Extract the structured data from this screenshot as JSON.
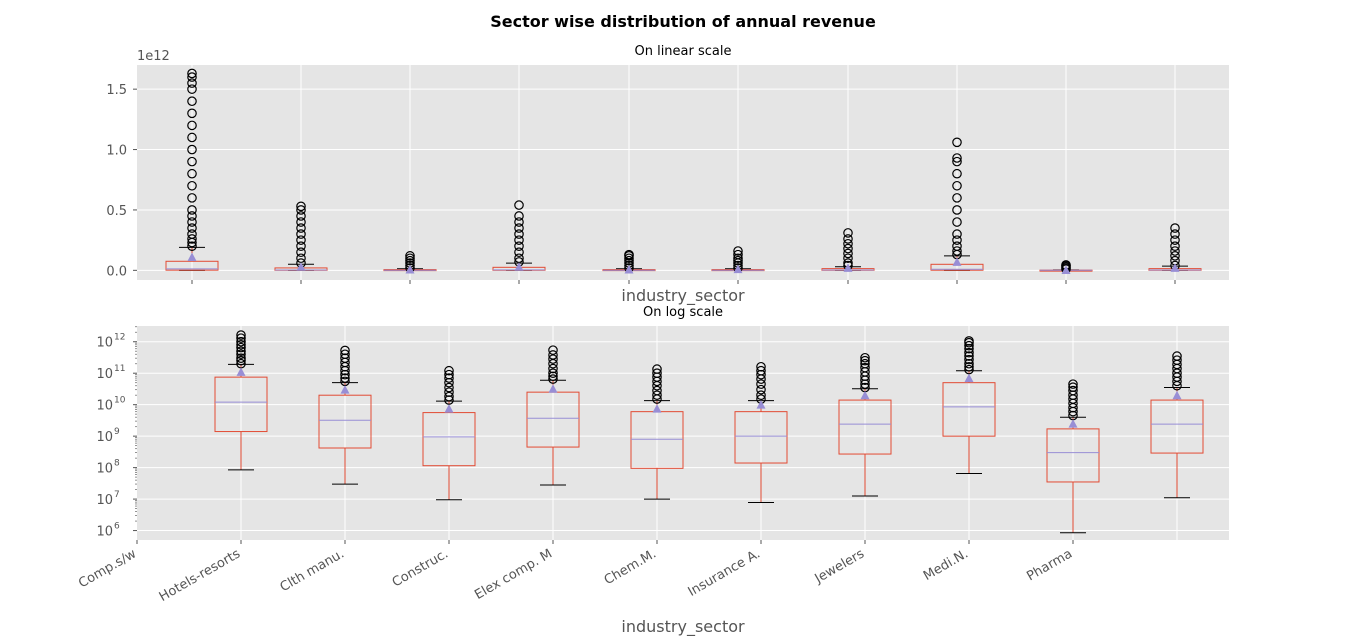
{
  "figure": {
    "suptitle": "Sector wise distribution of annual revenue"
  },
  "chart_data": [
    {
      "type": "box",
      "title": "On linear scale",
      "xlabel": "industry_sector",
      "ylabel": "",
      "yscale": "linear",
      "offset_text": "1e12",
      "ylim": [
        -0.08,
        1.7
      ],
      "yticks": [
        0.0,
        0.5,
        1.0,
        1.5
      ],
      "ytick_labels": [
        "0.0",
        "0.5",
        "1.0",
        "1.5"
      ],
      "units": "×1e12",
      "grid": true,
      "show_xtick_labels": false,
      "boxes": [
        {
          "q1": 0.0015,
          "median": 0.012,
          "q3": 0.075,
          "whislo": 0.0001,
          "whishi": 0.19,
          "mean": 0.11,
          "fliers": [
            0.2,
            0.23,
            0.26,
            0.3,
            0.35,
            0.4,
            0.45,
            0.5,
            0.6,
            0.7,
            0.8,
            0.9,
            1.0,
            1.1,
            1.2,
            1.3,
            1.4,
            1.5,
            1.55,
            1.6,
            1.63
          ]
        },
        {
          "q1": 0.0004,
          "median": 0.003,
          "q3": 0.02,
          "whislo": 3e-05,
          "whishi": 0.05,
          "mean": 0.03,
          "fliers": [
            0.06,
            0.1,
            0.15,
            0.2,
            0.25,
            0.3,
            0.35,
            0.4,
            0.45,
            0.5,
            0.53
          ]
        },
        {
          "q1": 0.0001,
          "median": 0.001,
          "q3": 0.006,
          "whislo": 1e-05,
          "whishi": 0.013,
          "mean": 0.007,
          "fliers": [
            0.02,
            0.04,
            0.06,
            0.08,
            0.1,
            0.12
          ]
        },
        {
          "q1": 0.0005,
          "median": 0.004,
          "q3": 0.025,
          "whislo": 3e-05,
          "whishi": 0.06,
          "mean": 0.03,
          "fliers": [
            0.07,
            0.1,
            0.15,
            0.2,
            0.25,
            0.3,
            0.35,
            0.4,
            0.45,
            0.54
          ]
        },
        {
          "q1": 0.0001,
          "median": 0.0008,
          "q3": 0.006,
          "whislo": 1e-05,
          "whishi": 0.013,
          "mean": 0.007,
          "fliers": [
            0.02,
            0.04,
            0.06,
            0.08,
            0.1,
            0.12,
            0.13
          ]
        },
        {
          "q1": 0.00015,
          "median": 0.001,
          "q3": 0.006,
          "whislo": 8e-06,
          "whishi": 0.013,
          "mean": 0.01,
          "fliers": [
            0.02,
            0.04,
            0.06,
            0.08,
            0.1,
            0.13,
            0.16
          ]
        },
        {
          "q1": 0.0003,
          "median": 0.0025,
          "q3": 0.014,
          "whislo": 1.3e-05,
          "whishi": 0.03,
          "mean": 0.02,
          "fliers": [
            0.04,
            0.06,
            0.1,
            0.14,
            0.18,
            0.22,
            0.26,
            0.31
          ]
        },
        {
          "q1": 0.001,
          "median": 0.009,
          "q3": 0.05,
          "whislo": 7e-05,
          "whishi": 0.12,
          "mean": 0.07,
          "fliers": [
            0.13,
            0.16,
            0.2,
            0.25,
            0.3,
            0.4,
            0.5,
            0.6,
            0.7,
            0.8,
            0.9,
            0.93,
            1.06
          ]
        },
        {
          "q1": 4e-05,
          "median": 0.0003,
          "q3": 0.0017,
          "whislo": 9e-07,
          "whishi": 0.004,
          "mean": 0.0025,
          "fliers": [
            0.01,
            0.02,
            0.03,
            0.04,
            0.045
          ]
        },
        {
          "q1": 0.0003,
          "median": 0.0025,
          "q3": 0.014,
          "whislo": 1.1e-05,
          "whishi": 0.035,
          "mean": 0.02,
          "fliers": [
            0.04,
            0.08,
            0.12,
            0.16,
            0.2,
            0.25,
            0.3,
            0.35
          ]
        }
      ]
    },
    {
      "type": "box",
      "title": "On log scale",
      "xlabel": "industry_sector",
      "ylabel": "",
      "yscale": "log",
      "ylim_exp": [
        5.7,
        12.5
      ],
      "ytick_exps": [
        6,
        7,
        8,
        9,
        10,
        11,
        12
      ],
      "grid": true,
      "categories": [
        "Comp.s/w",
        "Hotels-resorts",
        "Clth manu.",
        "Construc.",
        "Elex comp. M",
        "Chem.M.",
        "Insurance A.",
        "Jewelers",
        "Medi.N.",
        "Pharma"
      ],
      "boxes": [
        {
          "q1": 1400000000.0,
          "median": 12000000000.0,
          "q3": 75000000000.0,
          "whislo": 85000000.0,
          "whishi": 190000000000.0,
          "mean": 110000000000.0,
          "fliers": [
            200000000000.0,
            250000000000.0,
            300000000000.0,
            400000000000.0,
            500000000000.0,
            650000000000.0,
            800000000000.0,
            1000000000000.0,
            1300000000000.0,
            1630000000000.0
          ]
        },
        {
          "q1": 420000000.0,
          "median": 3200000000.0,
          "q3": 20000000000.0,
          "whislo": 30000000.0,
          "whishi": 50000000000.0,
          "mean": 30000000000.0,
          "fliers": [
            55000000000.0,
            70000000000.0,
            90000000000.0,
            120000000000.0,
            160000000000.0,
            220000000000.0,
            300000000000.0,
            400000000000.0,
            530000000000.0
          ]
        },
        {
          "q1": 115000000.0,
          "median": 950000000.0,
          "q3": 5600000000.0,
          "whislo": 9500000.0,
          "whishi": 13000000000.0,
          "mean": 7500000000.0,
          "fliers": [
            14000000000.0,
            18000000000.0,
            25000000000.0,
            35000000000.0,
            50000000000.0,
            70000000000.0,
            90000000000.0,
            120000000000.0
          ]
        },
        {
          "q1": 450000000.0,
          "median": 3700000000.0,
          "q3": 25000000000.0,
          "whislo": 28000000.0,
          "whishi": 60000000000.0,
          "mean": 32000000000.0,
          "fliers": [
            65000000000.0,
            80000000000.0,
            100000000000.0,
            140000000000.0,
            200000000000.0,
            280000000000.0,
            380000000000.0,
            540000000000.0
          ]
        },
        {
          "q1": 95000000.0,
          "median": 800000000.0,
          "q3": 6000000000.0,
          "whislo": 10000000.0,
          "whishi": 13500000000.0,
          "mean": 7500000000.0,
          "fliers": [
            15000000000.0,
            20000000000.0,
            28000000000.0,
            40000000000.0,
            55000000000.0,
            75000000000.0,
            100000000000.0,
            135000000000.0
          ]
        },
        {
          "q1": 140000000.0,
          "median": 1000000000.0,
          "q3": 6000000000.0,
          "whislo": 7800000.0,
          "whishi": 13500000000.0,
          "mean": 10000000000.0,
          "fliers": [
            15000000000.0,
            20000000000.0,
            30000000000.0,
            45000000000.0,
            65000000000.0,
            90000000000.0,
            120000000000.0,
            160000000000.0
          ]
        },
        {
          "q1": 270000000.0,
          "median": 2400000000.0,
          "q3": 14000000000.0,
          "whislo": 12500000.0,
          "whishi": 32000000000.0,
          "mean": 20000000000.0,
          "fliers": [
            35000000000.0,
            45000000000.0,
            60000000000.0,
            80000000000.0,
            110000000000.0,
            150000000000.0,
            200000000000.0,
            250000000000.0,
            310000000000.0
          ]
        },
        {
          "q1": 1000000000.0,
          "median": 8500000000.0,
          "q3": 50000000000.0,
          "whislo": 65000000.0,
          "whishi": 120000000000.0,
          "mean": 70000000000.0,
          "fliers": [
            130000000000.0,
            160000000000.0,
            200000000000.0,
            270000000000.0,
            350000000000.0,
            450000000000.0,
            600000000000.0,
            750000000000.0,
            930000000000.0,
            1060000000000.0
          ]
        },
        {
          "q1": 35000000.0,
          "median": 300000000.0,
          "q3": 1700000000.0,
          "whislo": 850000.0,
          "whishi": 4000000000.0,
          "mean": 2500000000.0,
          "fliers": [
            4500000000.0,
            6000000000.0,
            8000000000.0,
            11000000000.0,
            15000000000.0,
            20000000000.0,
            28000000000.0,
            36000000000.0,
            45000000000.0
          ]
        },
        {
          "q1": 290000000.0,
          "median": 2400000000.0,
          "q3": 14000000000.0,
          "whislo": 11000000.0,
          "whishi": 35000000000.0,
          "mean": 20000000000.0,
          "fliers": [
            40000000000.0,
            55000000000.0,
            75000000000.0,
            100000000000.0,
            140000000000.0,
            190000000000.0,
            260000000000.0,
            350000000000.0
          ]
        }
      ]
    }
  ],
  "style": {
    "axes_bg": "#e5e5e5",
    "grid": "#ffffff",
    "box_color": "#e24a33",
    "median_color": "#988ed5",
    "mean_marker_color": "#988ed5",
    "text_color": "#555555",
    "title_color": "#000000"
  }
}
